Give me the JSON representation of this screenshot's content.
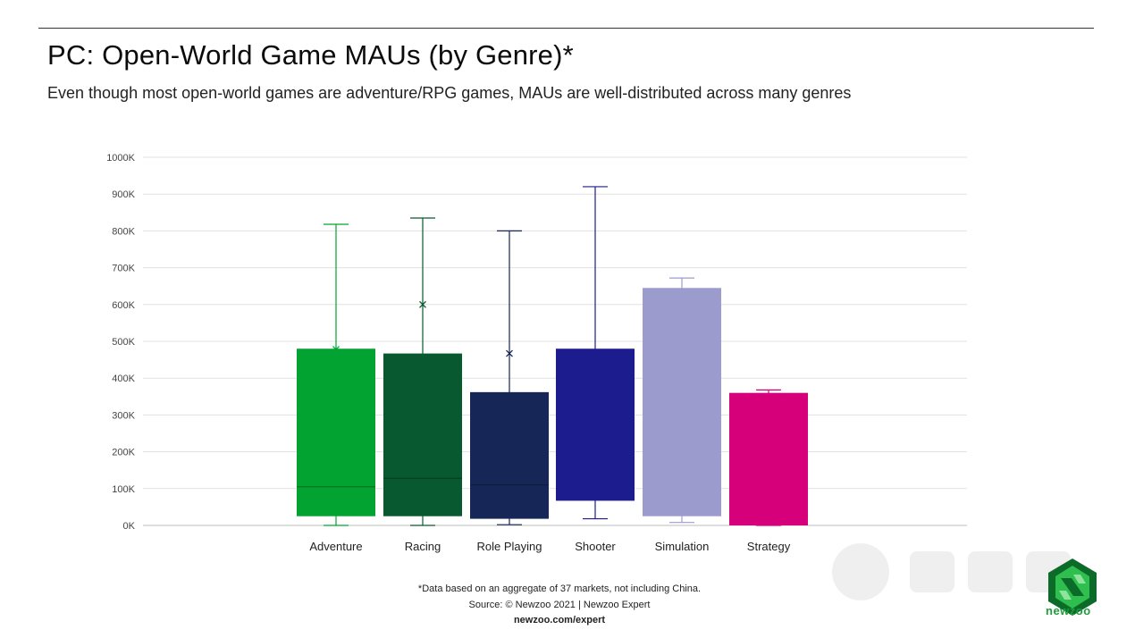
{
  "header": {
    "title": "PC: Open-World Game MAUs (by Genre)*",
    "subtitle": "Even though most open-world games are adventure/RPG games, MAUs are well-distributed across many genres"
  },
  "footer": {
    "note": "*Data based on an aggregate of 37 markets, not including China.",
    "source": "Source: © Newzoo 2021 | Newzoo Expert",
    "url": "newzoo.com/expert"
  },
  "logo": {
    "text": "newzoo",
    "icon": "newzoo-logo-icon",
    "color": "#1e9e3a"
  },
  "chart_data": {
    "type": "box",
    "title": "PC: Open-World Game MAUs (by Genre)*",
    "categories": [
      "Adventure",
      "Racing",
      "Role Playing",
      "Shooter",
      "Simulation",
      "Strategy"
    ],
    "ylim": [
      0,
      1000
    ],
    "yticks": [
      0,
      100,
      200,
      300,
      400,
      500,
      600,
      700,
      800,
      900,
      1000
    ],
    "ytick_labels": [
      "0K",
      "100K",
      "200K",
      "300K",
      "400K",
      "500K",
      "600K",
      "700K",
      "800K",
      "900K",
      "1000K"
    ],
    "grid": true,
    "series": [
      {
        "category": "Adventure",
        "min": 0,
        "q1": 25,
        "median": 105,
        "q3": 480,
        "max": 818,
        "mean": 478,
        "color": "#03a331"
      },
      {
        "category": "Racing",
        "min": 0,
        "q1": 25,
        "median": 128,
        "q3": 467,
        "max": 835,
        "mean": 600,
        "color": "#08592f"
      },
      {
        "category": "Role Playing",
        "min": 2,
        "q1": 18,
        "median": 110,
        "q3": 362,
        "max": 800,
        "mean": 467,
        "color": "#162757"
      },
      {
        "category": "Shooter",
        "min": 18,
        "q1": 67,
        "median": null,
        "q3": 480,
        "max": 920,
        "mean": null,
        "color": "#1c1c8e"
      },
      {
        "category": "Simulation",
        "min": 8,
        "q1": 25,
        "median": null,
        "q3": 645,
        "max": 672,
        "mean": null,
        "color": "#9c9bce"
      },
      {
        "category": "Strategy",
        "min": 0,
        "q1": 0,
        "median": null,
        "q3": 360,
        "max": 368,
        "mean": null,
        "color": "#d6007a"
      }
    ]
  }
}
